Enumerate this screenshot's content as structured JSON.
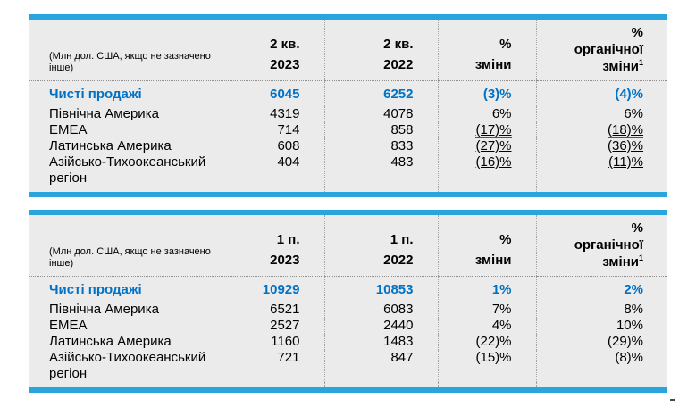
{
  "colors": {
    "accent_bar": "#29A5DD",
    "emphasis_text": "#0072C6",
    "table_background": "#EBEBEB",
    "link_underline": "#0B63C5"
  },
  "tables": [
    {
      "unit_note": "(Млн дол. США, якщо не зазначено інше)",
      "columns": [
        {
          "l1": "2 кв.",
          "l2": "2023"
        },
        {
          "l1": "2 кв.",
          "l2": "2022"
        },
        {
          "l1": "%",
          "l2": "зміни"
        },
        {
          "l1": "%",
          "l2": "органічної",
          "l3": "зміни",
          "sup": "1"
        }
      ],
      "rows": [
        {
          "label": "Чисті продажі",
          "v1": "6045",
          "v2": "6252",
          "chg": "(3)%",
          "org": "(4)%"
        },
        {
          "label": "Північна Америка",
          "v1": "4319",
          "v2": "4078",
          "chg": "6%",
          "org": "6%"
        },
        {
          "label": "EMEA",
          "v1": "714",
          "v2": "858",
          "chg": "(17)%",
          "org": "(18)%"
        },
        {
          "label": "Латинська Америка",
          "v1": "608",
          "v2": "833",
          "chg": "(27)%",
          "org": "(36)%"
        },
        {
          "label": "Азійсько-Тихоокеанський регіон",
          "v1": "404",
          "v2": "483",
          "chg": "(16)%",
          "org": "(11)%"
        }
      ]
    },
    {
      "unit_note": "(Млн дол. США, якщо не зазначено інше)",
      "columns": [
        {
          "l1": "1 п.",
          "l2": "2023"
        },
        {
          "l1": "1 п.",
          "l2": "2022"
        },
        {
          "l1": "%",
          "l2": "зміни"
        },
        {
          "l1": "%",
          "l2": "органічної",
          "l3": "зміни",
          "sup": "1"
        }
      ],
      "rows": [
        {
          "label": "Чисті продажі",
          "v1": "10929",
          "v2": "10853",
          "chg": "1%",
          "org": "2%"
        },
        {
          "label": "Північна Америка",
          "v1": "6521",
          "v2": "6083",
          "chg": "7%",
          "org": "8%"
        },
        {
          "label": "EMEA",
          "v1": "2527",
          "v2": "2440",
          "chg": "4%",
          "org": "10%"
        },
        {
          "label": "Латинська Америка",
          "v1": "1160",
          "v2": "1483",
          "chg": "(22)%",
          "org": "(29)%"
        },
        {
          "label": "Азійсько-Тихоокеанський регіон",
          "v1": "721",
          "v2": "847",
          "chg": "(15)%",
          "org": "(8)%"
        }
      ]
    }
  ]
}
